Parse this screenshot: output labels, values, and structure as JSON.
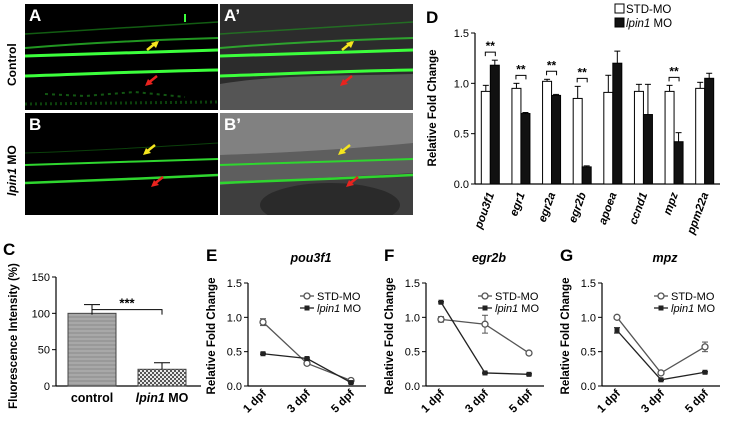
{
  "panel_labels": {
    "A": "A",
    "A2": "A’",
    "B": "B",
    "B2": "B’",
    "C": "C",
    "D": "D",
    "E": "E",
    "F": "F",
    "G": "G"
  },
  "row_labels": {
    "control": "Control",
    "lpin1_prefix": "lpin1",
    "lpin1_suffix": " MO"
  },
  "colors": {
    "arrow_yellow": "#f5e61e",
    "arrow_red": "#e8231e",
    "fiber_green": "#3cff3c"
  },
  "chart_data": [
    {
      "id": "D",
      "type": "bar",
      "ylabel": "Relative Fold Change",
      "ylim": [
        0,
        1.5
      ],
      "yticks": [
        "0.0",
        "0.5",
        "1.0",
        "1.5"
      ],
      "categories": [
        "pou3f1",
        "egr1",
        "egr2a",
        "egr2b",
        "apoea",
        "ccnd1",
        "mpz",
        "ppm22a"
      ],
      "series": [
        {
          "name": "STD-MO",
          "values": [
            0.92,
            0.95,
            1.02,
            0.85,
            0.91,
            0.92,
            0.92,
            0.95
          ],
          "errors": [
            0.06,
            0.05,
            0.02,
            0.12,
            0.17,
            0.07,
            0.06,
            0.06
          ]
        },
        {
          "name_prefix": "lpin1",
          "name_suffix": " MO",
          "values": [
            1.18,
            0.7,
            0.88,
            0.17,
            1.2,
            0.69,
            0.42,
            1.05
          ],
          "errors": [
            0.05,
            0.01,
            0.01,
            0.01,
            0.12,
            0.3,
            0.09,
            0.05
          ]
        }
      ],
      "significance": [
        {
          "index": 0,
          "label": "**"
        },
        {
          "index": 1,
          "label": "**"
        },
        {
          "index": 2,
          "label": "**"
        },
        {
          "index": 3,
          "label": "**"
        },
        {
          "index": 6,
          "label": "**"
        }
      ]
    },
    {
      "id": "C",
      "type": "bar",
      "ylabel": "Fluorescence Intensity (%)",
      "ylim": [
        0,
        150
      ],
      "yticks": [
        "0",
        "50",
        "100",
        "150"
      ],
      "categories": [
        {
          "prefix": "control",
          "suffix": ""
        },
        {
          "prefix": "lpin1",
          "suffix": " MO"
        }
      ],
      "values": [
        100,
        23
      ],
      "errors": [
        12,
        9
      ],
      "significance": "***"
    },
    {
      "id": "E",
      "type": "line",
      "title": "pou3f1",
      "ylabel": "Relative Fold Change",
      "ylim": [
        0,
        1.5
      ],
      "yticks": [
        "0.0",
        "0.5",
        "1.0",
        "1.5"
      ],
      "x": [
        "1 dpf",
        "3 dpf",
        "5 dpf"
      ],
      "series": [
        {
          "name": "STD-MO",
          "values": [
            0.93,
            0.33,
            0.08
          ],
          "errors": [
            0.05,
            0.02,
            0.02
          ]
        },
        {
          "name_prefix": "lpin1",
          "name_suffix": " MO",
          "values": [
            0.47,
            0.4,
            0.05
          ],
          "errors": [
            0.01,
            0.01,
            0.01
          ]
        }
      ]
    },
    {
      "id": "F",
      "type": "line",
      "title": "egr2b",
      "ylabel": "Relative Fold Change",
      "ylim": [
        0,
        1.5
      ],
      "yticks": [
        "0.0",
        "0.5",
        "1.0",
        "1.5"
      ],
      "x": [
        "1 dpf",
        "3 dpf",
        "5 dpf"
      ],
      "series": [
        {
          "name": "STD-MO",
          "values": [
            0.97,
            0.9,
            0.48
          ],
          "errors": [
            0.04,
            0.13,
            0.02
          ]
        },
        {
          "name_prefix": "lpin1",
          "name_suffix": " MO",
          "values": [
            1.22,
            0.19,
            0.17
          ],
          "errors": [
            0.01,
            0.01,
            0.01
          ]
        }
      ]
    },
    {
      "id": "G",
      "type": "line",
      "title": "mpz",
      "ylabel": "Relative Fold Change",
      "ylim": [
        0,
        1.5
      ],
      "yticks": [
        "0.0",
        "0.5",
        "1.0",
        "1.5"
      ],
      "x": [
        "1 dpf",
        "3 dpf",
        "5 dpf"
      ],
      "series": [
        {
          "name": "STD-MO",
          "values": [
            1.0,
            0.19,
            0.57
          ],
          "errors": [
            0.01,
            0.02,
            0.07
          ]
        },
        {
          "name_prefix": "lpin1",
          "name_suffix": " MO",
          "values": [
            0.81,
            0.09,
            0.2
          ],
          "errors": [
            0.04,
            0.01,
            0.01
          ]
        }
      ]
    }
  ]
}
